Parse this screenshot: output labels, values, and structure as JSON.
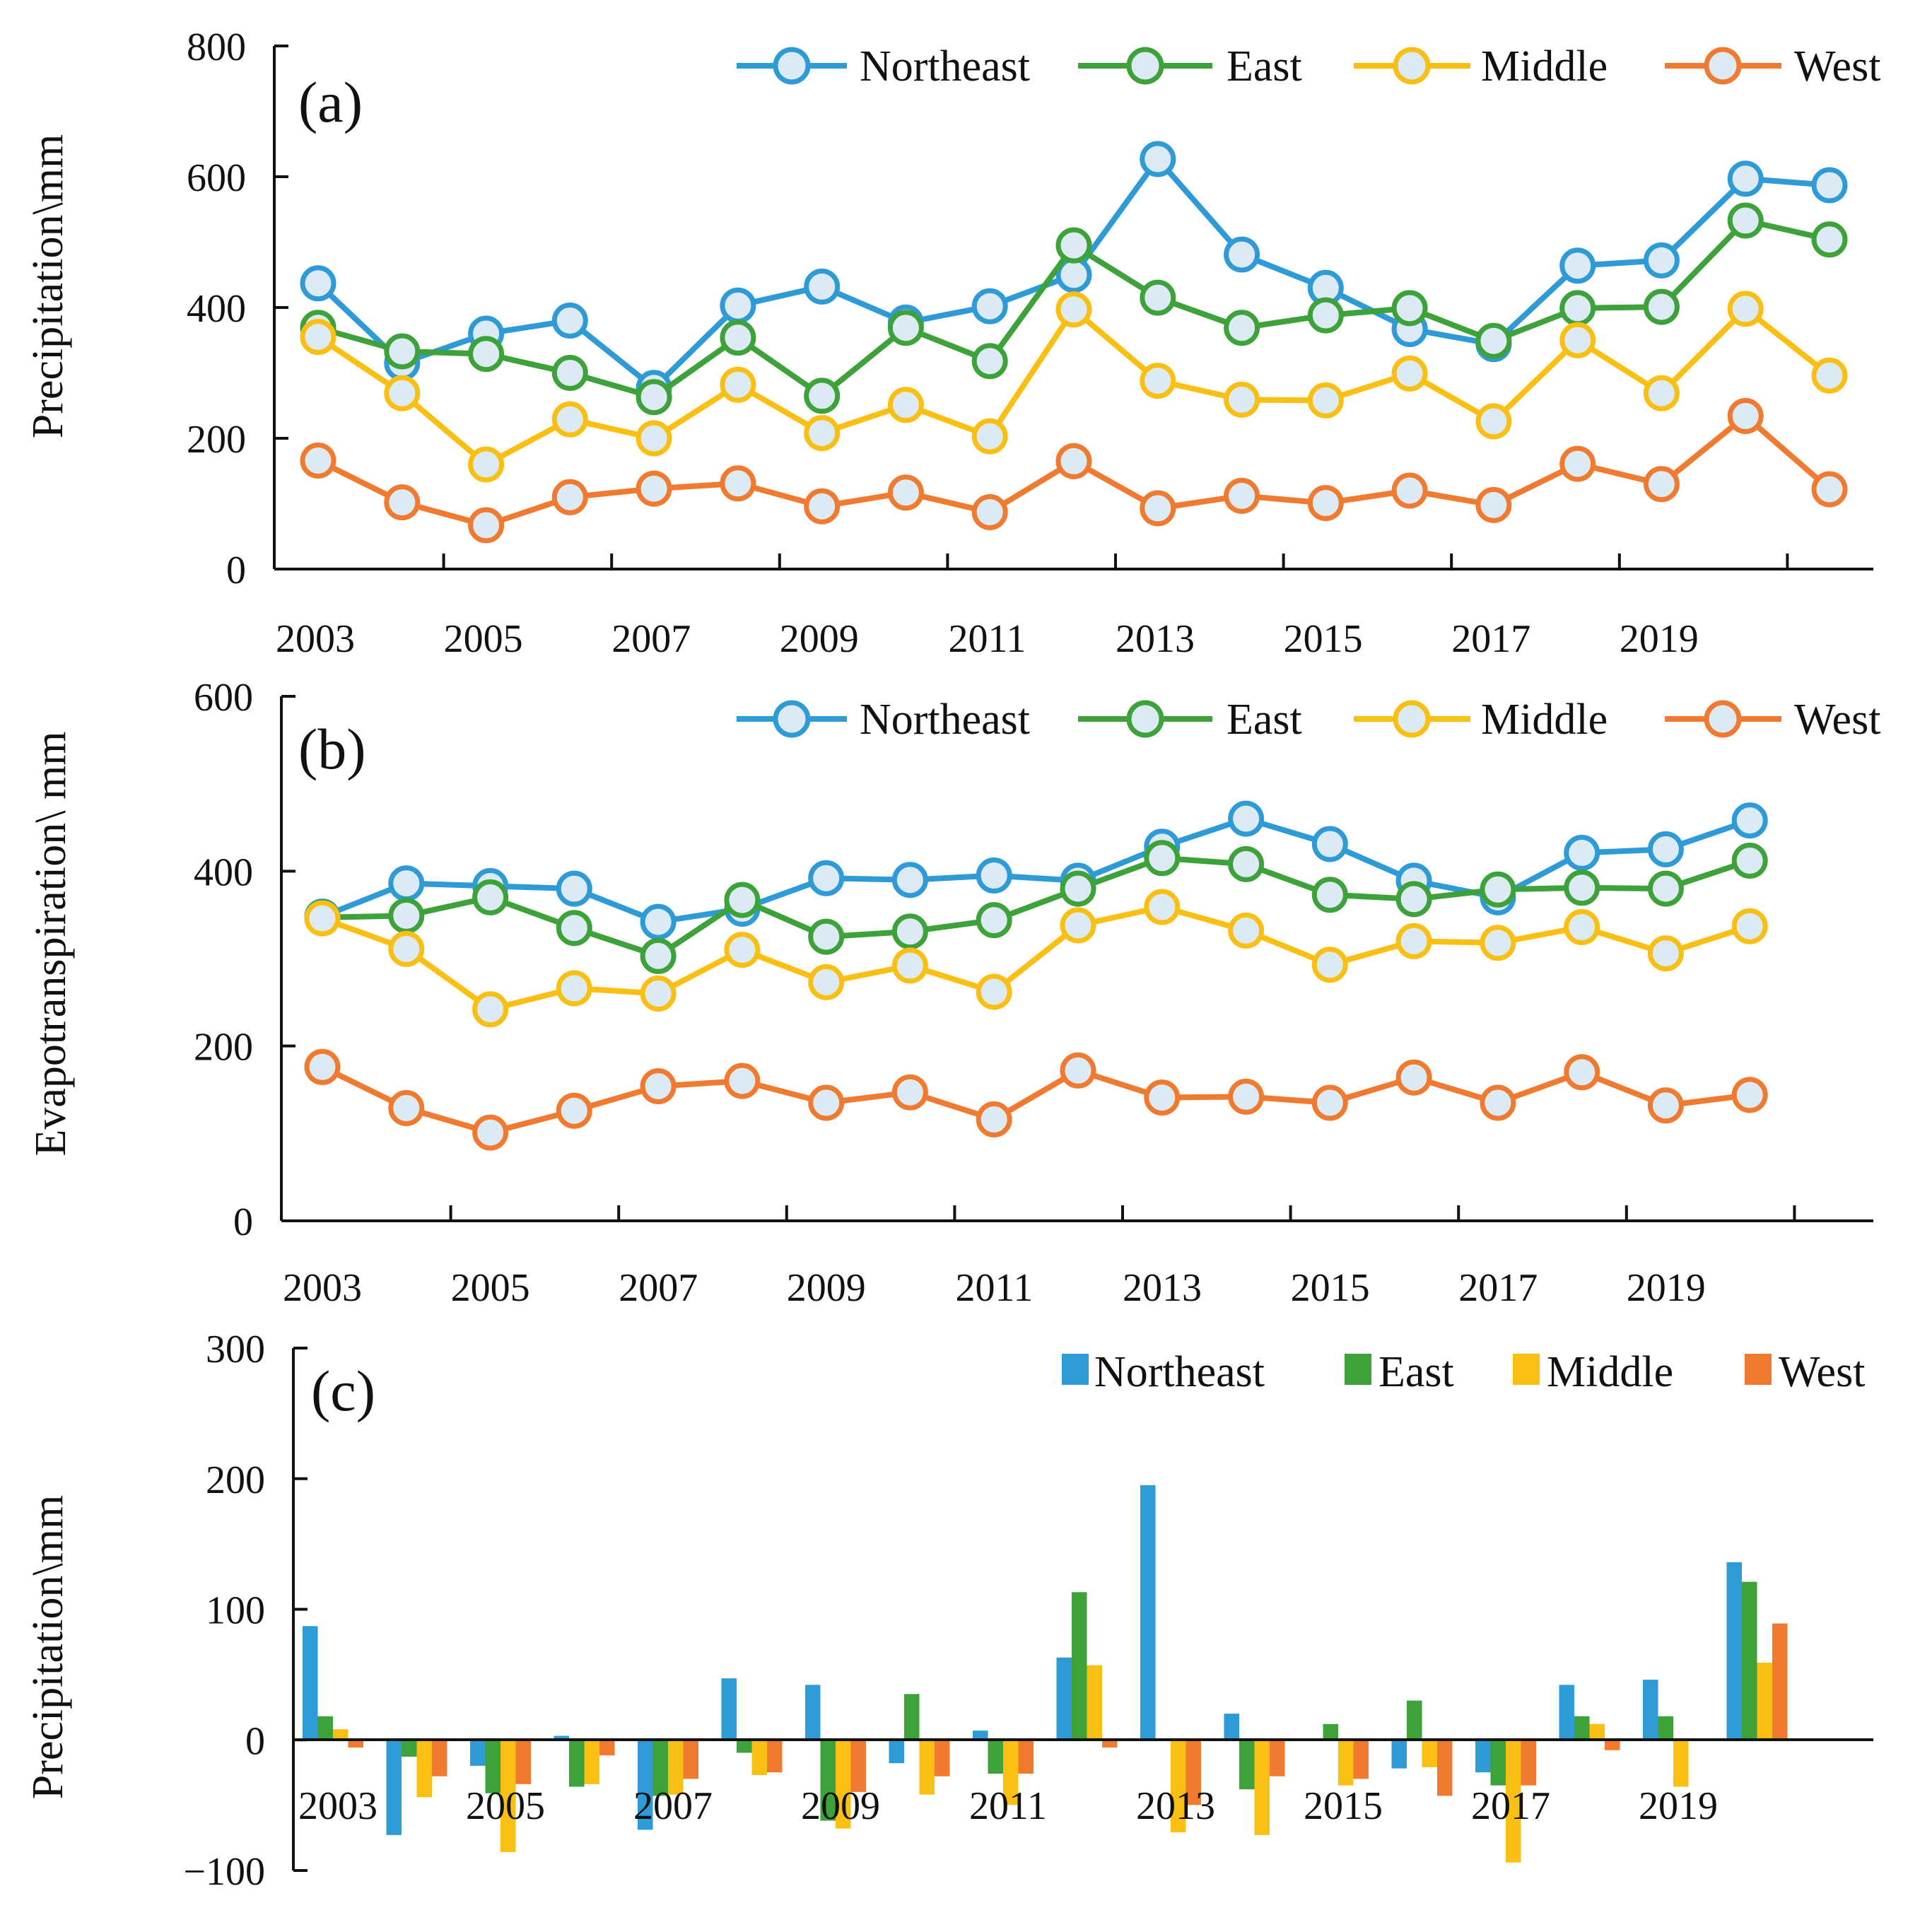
{
  "colors": {
    "Northeast": "#2e9bd6",
    "East": "#3ea23a",
    "Middle": "#f9bf12",
    "West": "#f07a30",
    "marker_fill": "#dceaf3"
  },
  "chart_data": [
    {
      "panel": "a",
      "type": "line",
      "panel_label": "(a)",
      "ylabel": "Precipitation\\mm",
      "xlabel": "",
      "ylim": [
        0,
        800
      ],
      "yticks": [
        "0",
        "200",
        "400",
        "600",
        "800"
      ],
      "x_tick_labels": [
        "2003",
        "2005",
        "2007",
        "2009",
        "2011",
        "2013",
        "2015",
        "2017",
        "2019"
      ],
      "x": [
        2003,
        2004,
        2005,
        2006,
        2007,
        2008,
        2009,
        2010,
        2011,
        2012,
        2013,
        2014,
        2015,
        2016,
        2017,
        2018,
        2019,
        2020,
        2021
      ],
      "legend": [
        "Northeast",
        "East",
        "Middle",
        "West"
      ],
      "series": [
        {
          "name": "Northeast",
          "values": [
            437,
            315,
            360,
            380,
            277,
            403,
            432,
            377,
            402,
            450,
            627,
            481,
            430,
            367,
            344,
            464,
            472,
            597,
            587
          ]
        },
        {
          "name": "East",
          "values": [
            369,
            333,
            329,
            300,
            263,
            354,
            265,
            369,
            318,
            495,
            415,
            369,
            388,
            399,
            349,
            399,
            401,
            533,
            504
          ]
        },
        {
          "name": "Middle",
          "values": [
            355,
            269,
            160,
            229,
            200,
            282,
            208,
            251,
            203,
            397,
            288,
            259,
            258,
            299,
            226,
            350,
            269,
            398,
            296
          ]
        },
        {
          "name": "West",
          "values": [
            166,
            102,
            67,
            110,
            123,
            131,
            96,
            117,
            87,
            165,
            93,
            112,
            101,
            120,
            98,
            161,
            130,
            234,
            122
          ]
        }
      ]
    },
    {
      "panel": "b",
      "type": "line",
      "panel_label": "(b)",
      "ylabel": "Evapotranspiration\\ mm",
      "xlabel": "",
      "ylim": [
        0,
        600
      ],
      "yticks": [
        "0",
        "200",
        "400",
        "600"
      ],
      "x_tick_labels": [
        "2003",
        "2005",
        "2007",
        "2009",
        "2011",
        "2013",
        "2015",
        "2017",
        "2019"
      ],
      "x": [
        2003,
        2004,
        2005,
        2006,
        2007,
        2008,
        2009,
        2010,
        2011,
        2012,
        2013,
        2014,
        2015,
        2016,
        2017,
        2018,
        2019,
        2020
      ],
      "legend": [
        "Northeast",
        "East",
        "Middle",
        "West"
      ],
      "series": [
        {
          "name": "Northeast",
          "values": [
            348,
            386,
            383,
            380,
            342,
            357,
            392,
            390,
            395,
            389,
            428,
            460,
            431,
            389,
            370,
            421,
            425,
            458
          ]
        },
        {
          "name": "East",
          "values": [
            347,
            349,
            370,
            335,
            303,
            367,
            325,
            331,
            344,
            380,
            415,
            408,
            373,
            368,
            379,
            381,
            380,
            412
          ]
        },
        {
          "name": "Middle",
          "values": [
            346,
            311,
            242,
            266,
            260,
            310,
            273,
            292,
            262,
            338,
            359,
            332,
            293,
            320,
            318,
            336,
            306,
            337
          ]
        },
        {
          "name": "West",
          "values": [
            176,
            129,
            101,
            126,
            154,
            160,
            135,
            147,
            116,
            172,
            141,
            142,
            135,
            164,
            135,
            170,
            132,
            144
          ]
        }
      ]
    },
    {
      "panel": "c",
      "type": "bar",
      "panel_label": "(c)",
      "ylabel": "Precipitation\\mm",
      "xlabel": "",
      "ylim": [
        -100,
        300
      ],
      "yticks": [
        "−100",
        "0",
        "100",
        "200",
        "300"
      ],
      "x_tick_labels": [
        "2003",
        "2005",
        "2007",
        "2009",
        "2011",
        "2013",
        "2015",
        "2017",
        "2019"
      ],
      "x": [
        2003,
        2004,
        2005,
        2006,
        2007,
        2008,
        2009,
        2010,
        2011,
        2012,
        2013,
        2014,
        2015,
        2016,
        2017,
        2018,
        2019,
        2020
      ],
      "legend": [
        "Northeast",
        "East",
        "Middle",
        "West"
      ],
      "series": [
        {
          "name": "Northeast",
          "values": [
            87,
            -73,
            -20,
            3,
            -69,
            47,
            42,
            -18,
            7,
            63,
            195,
            20,
            0,
            -22,
            -25,
            42,
            46,
            136
          ]
        },
        {
          "name": "East",
          "values": [
            18,
            -13,
            -41,
            -36,
            -43,
            -10,
            -62,
            35,
            -26,
            113,
            0,
            -38,
            12,
            30,
            -35,
            18,
            18,
            121
          ]
        },
        {
          "name": "Middle",
          "values": [
            8,
            -44,
            -86,
            -34,
            -42,
            -27,
            -68,
            -42,
            -50,
            57,
            -71,
            -73,
            -35,
            -21,
            -94,
            12,
            -36,
            59
          ]
        },
        {
          "name": "West",
          "values": [
            -6,
            -28,
            -34,
            -12,
            -30,
            -25,
            -40,
            -28,
            -26,
            -6,
            -50,
            -28,
            -30,
            -43,
            -35,
            -8,
            0,
            89
          ]
        }
      ]
    }
  ]
}
